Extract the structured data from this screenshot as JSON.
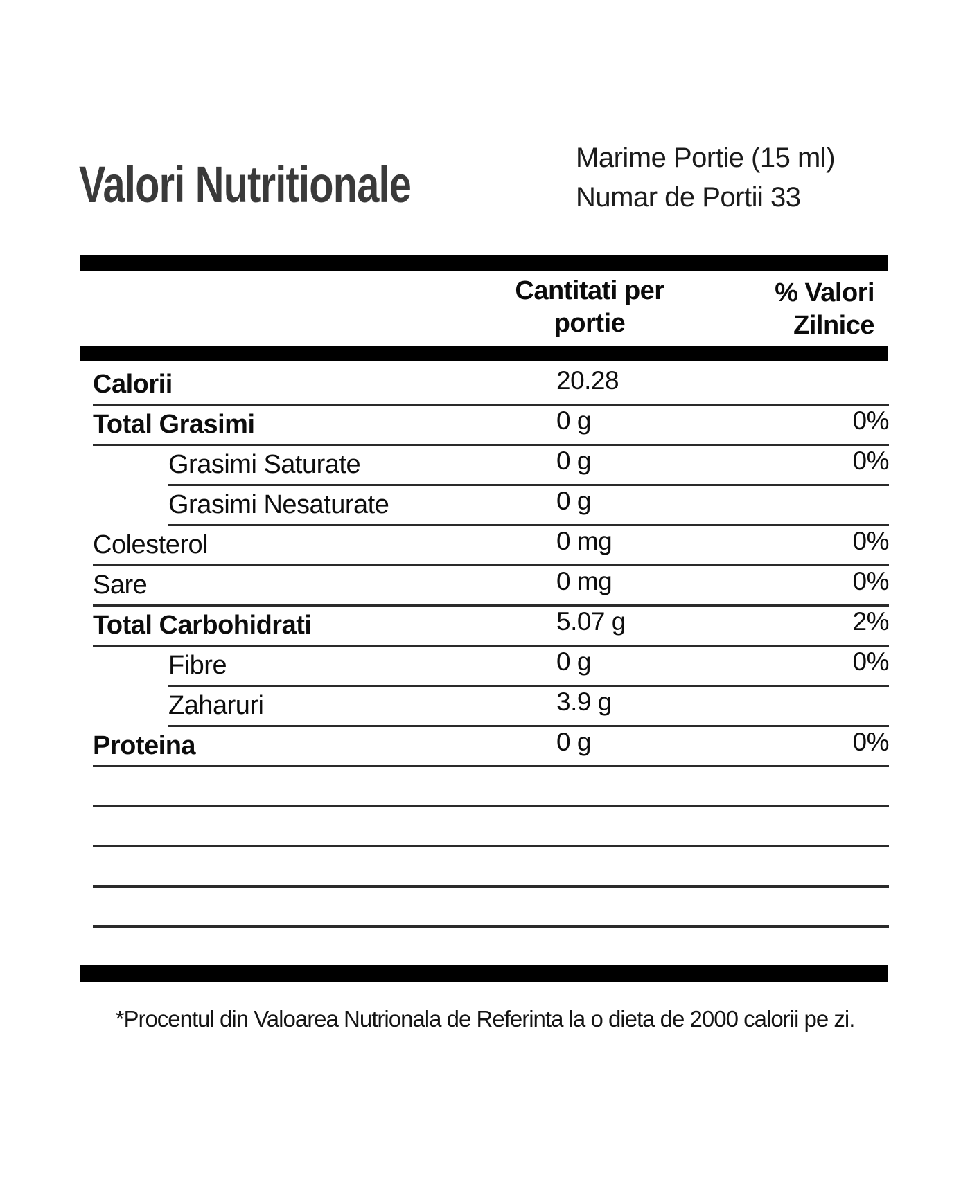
{
  "title": "Valori Nutritionale",
  "serving_info": {
    "serving_size": "Marime Portie (15 ml)",
    "servings_per_container": "Numar de Portii 33"
  },
  "headers": {
    "amount_line1": "Cantitati per",
    "amount_line2": "portie",
    "dv_line1": "% Valori",
    "dv_line2": "Zilnice"
  },
  "rows": [
    {
      "label": "Calorii",
      "value": "20.28",
      "dv": "",
      "bold": true,
      "indent": false
    },
    {
      "label": "Total Grasimi",
      "value": "0 g",
      "dv": "0%",
      "bold": true,
      "indent": false
    },
    {
      "label": "Grasimi Saturate",
      "value": "0 g",
      "dv": "0%",
      "bold": false,
      "indent": true
    },
    {
      "label": "Grasimi Nesaturate",
      "value": "0 g",
      "dv": "",
      "bold": false,
      "indent": true
    },
    {
      "label": "Colesterol",
      "value": "0 mg",
      "dv": "0%",
      "bold": false,
      "indent": false
    },
    {
      "label": "Sare",
      "value": "0 mg",
      "dv": "0%",
      "bold": false,
      "indent": false
    },
    {
      "label": "Total Carbohidrati",
      "value": "5.07 g",
      "dv": "2%",
      "bold": true,
      "indent": false
    },
    {
      "label": "Fibre",
      "value": "0 g",
      "dv": "0%",
      "bold": false,
      "indent": true
    },
    {
      "label": "Zaharuri",
      "value": "3.9 g",
      "dv": "",
      "bold": false,
      "indent": true
    },
    {
      "label": "Proteina",
      "value": "0 g",
      "dv": "0%",
      "bold": true,
      "indent": false
    }
  ],
  "empty_row_count": 4,
  "footnote": "*Procentul din Valoarea Nutrionala de Referinta la o dieta de 2000 calorii pe zi.",
  "colors": {
    "bar": "#000000",
    "line": "#2a2a2a",
    "title": "#3a3a3a",
    "text": "#0d0d0d"
  }
}
